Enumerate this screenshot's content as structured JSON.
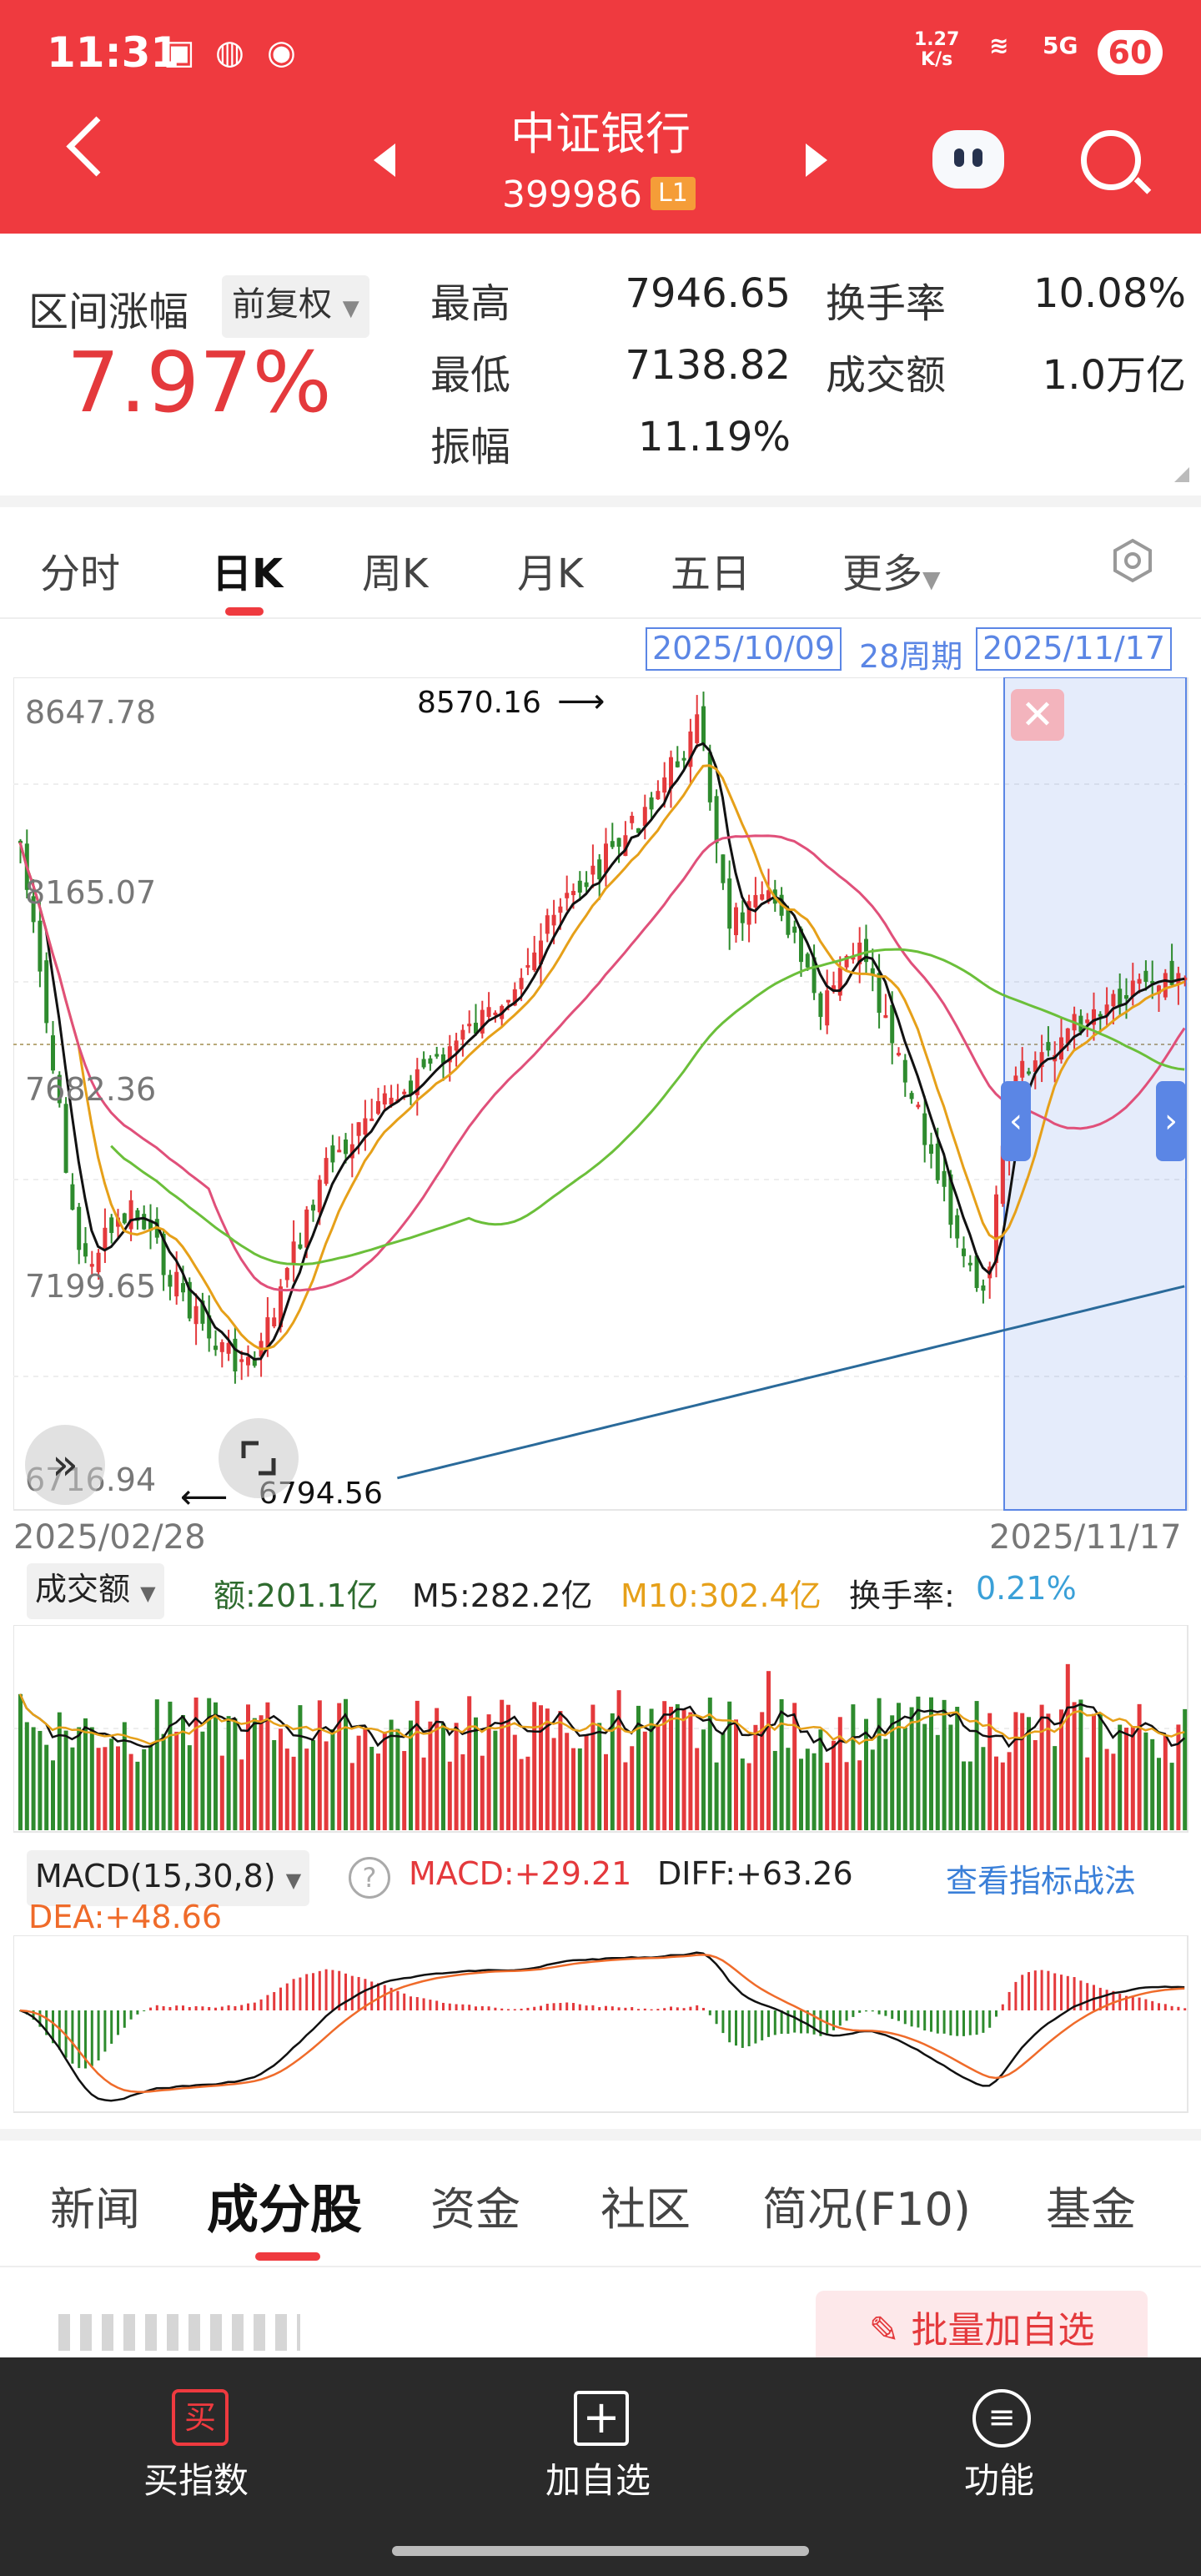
{
  "status_bar": {
    "time": "11:31",
    "speed_value": "1.27",
    "speed_unit": "K/s",
    "network": "5G",
    "battery": "60"
  },
  "header": {
    "title": "中证银行",
    "code": "399986",
    "level_badge": "L1"
  },
  "stats": {
    "range_change_label": "区间涨幅",
    "adjust_label": "前复权",
    "range_change_value": "7.97%",
    "high_label": "最高",
    "high_value": "7946.65",
    "low_label": "最低",
    "low_value": "7138.82",
    "amplitude_label": "振幅",
    "amplitude_value": "11.19%",
    "turnover_label": "换手率",
    "turnover_value": "10.08%",
    "amount_label": "成交额",
    "amount_value": "1.0万亿"
  },
  "chart_tabs": [
    {
      "label": "分时"
    },
    {
      "label": "日K"
    },
    {
      "label": "周K"
    },
    {
      "label": "月K"
    },
    {
      "label": "五日"
    },
    {
      "label": "更多"
    }
  ],
  "range_bar": {
    "start": "2025/10/09",
    "weeks": "28周期",
    "end": "2025/11/17"
  },
  "kline": {
    "y_ticks": [
      "8647.78",
      "8165.07",
      "7682.36",
      "7199.65",
      "6716.94"
    ],
    "max_label": "8570.16",
    "min_label": "6794.56",
    "date_start": "2025/02/28",
    "date_end": "2025/11/17"
  },
  "volume": {
    "selector": "成交额",
    "amount_label": "额:201.1亿",
    "m5_label": "M5:282.2亿",
    "m10_label": "M10:302.4亿",
    "turnover_label": "换手率:",
    "turnover_value": "0.21%"
  },
  "macd": {
    "selector": "MACD(15,30,8)",
    "macd_label": "MACD:+29.21",
    "diff_label": "DIFF:+63.26",
    "dea_label": "DEA:+48.66",
    "link": "查看指标战法"
  },
  "bottom_tabs": [
    {
      "label": "新闻"
    },
    {
      "label": "成分股"
    },
    {
      "label": "资金"
    },
    {
      "label": "社区"
    },
    {
      "label": "简况(F10)"
    },
    {
      "label": "基金"
    }
  ],
  "batch_add": "批量加自选",
  "nav": [
    {
      "label": "买指数",
      "icon_text": "买"
    },
    {
      "label": "加自选"
    },
    {
      "label": "功能"
    }
  ],
  "colors": {
    "brand_red": "#ef3a3f",
    "up": "#e4393c",
    "down": "#2e8b2e",
    "ma5": "#111111",
    "ma10": "#e6a019",
    "ma20": "#e0507a",
    "ma60": "#6bbf3a",
    "ma120": "#2a6a9a",
    "selection": "#5b86e5"
  }
}
